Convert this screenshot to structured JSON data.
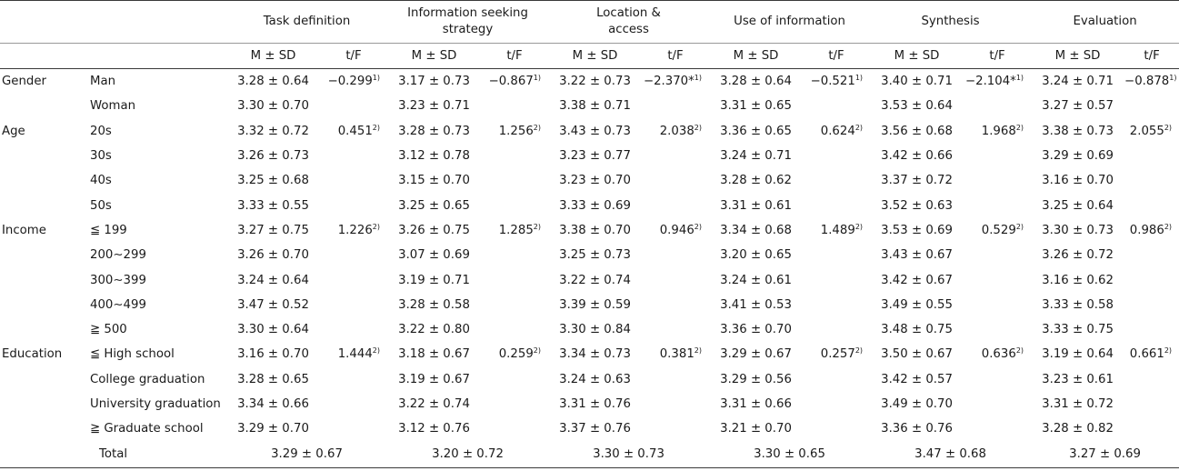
{
  "columns": [
    {
      "label": "Task definition"
    },
    {
      "label": "Information seeking strategy"
    },
    {
      "label": "Location & access"
    },
    {
      "label": "Use of information"
    },
    {
      "label": "Synthesis"
    },
    {
      "label": "Evaluation"
    }
  ],
  "sub_headers": {
    "ms": "M ± SD",
    "tf": "t/F"
  },
  "rows": [
    {
      "group": "Gender",
      "sub": "Man",
      "cells": [
        [
          "3.28 ± 0.64",
          "−0.299",
          "1)"
        ],
        [
          "3.17 ± 0.73",
          "−0.867",
          "1)"
        ],
        [
          "3.22 ± 0.73",
          "−2.370*",
          "1)"
        ],
        [
          "3.28 ± 0.64",
          "−0.521",
          "1)"
        ],
        [
          "3.40 ± 0.71",
          "−2.104*",
          "1)"
        ],
        [
          "3.24 ± 0.71",
          "−0.878",
          "1)"
        ]
      ]
    },
    {
      "group": "",
      "sub": "Woman",
      "cells": [
        [
          "3.30 ± 0.70",
          "",
          ""
        ],
        [
          "3.23 ± 0.71",
          "",
          ""
        ],
        [
          "3.38 ± 0.71",
          "",
          ""
        ],
        [
          "3.31 ± 0.65",
          "",
          ""
        ],
        [
          "3.53 ± 0.64",
          "",
          ""
        ],
        [
          "3.27 ± 0.57",
          "",
          ""
        ]
      ]
    },
    {
      "group": "Age",
      "sub": "20s",
      "cells": [
        [
          "3.32 ± 0.72",
          "0.451",
          "2)"
        ],
        [
          "3.28 ± 0.73",
          "1.256",
          "2)"
        ],
        [
          "3.43 ± 0.73",
          "2.038",
          "2)"
        ],
        [
          "3.36 ± 0.65",
          "0.624",
          "2)"
        ],
        [
          "3.56 ± 0.68",
          "1.968",
          "2)"
        ],
        [
          "3.38 ± 0.73",
          "2.055",
          "2)"
        ]
      ]
    },
    {
      "group": "",
      "sub": "30s",
      "cells": [
        [
          "3.26 ± 0.73",
          "",
          ""
        ],
        [
          "3.12 ± 0.78",
          "",
          ""
        ],
        [
          "3.23 ± 0.77",
          "",
          ""
        ],
        [
          "3.24 ± 0.71",
          "",
          ""
        ],
        [
          "3.42 ± 0.66",
          "",
          ""
        ],
        [
          "3.29 ± 0.69",
          "",
          ""
        ]
      ]
    },
    {
      "group": "",
      "sub": "40s",
      "cells": [
        [
          "3.25 ± 0.68",
          "",
          ""
        ],
        [
          "3.15 ± 0.70",
          "",
          ""
        ],
        [
          "3.23 ± 0.70",
          "",
          ""
        ],
        [
          "3.28 ± 0.62",
          "",
          ""
        ],
        [
          "3.37 ± 0.72",
          "",
          ""
        ],
        [
          "3.16 ± 0.70",
          "",
          ""
        ]
      ]
    },
    {
      "group": "",
      "sub": "50s",
      "cells": [
        [
          "3.33 ± 0.55",
          "",
          ""
        ],
        [
          "3.25 ± 0.65",
          "",
          ""
        ],
        [
          "3.33 ± 0.69",
          "",
          ""
        ],
        [
          "3.31 ± 0.61",
          "",
          ""
        ],
        [
          "3.52 ± 0.63",
          "",
          ""
        ],
        [
          "3.25 ± 0.64",
          "",
          ""
        ]
      ]
    },
    {
      "group": "Income",
      "sub": "≦ 199",
      "cells": [
        [
          "3.27 ± 0.75",
          "1.226",
          "2)"
        ],
        [
          "3.26 ± 0.75",
          "1.285",
          "2)"
        ],
        [
          "3.38 ± 0.70",
          "0.946",
          "2)"
        ],
        [
          "3.34 ± 0.68",
          "1.489",
          "2)"
        ],
        [
          "3.53 ± 0.69",
          "0.529",
          "2)"
        ],
        [
          "3.30 ± 0.73",
          "0.986",
          "2)"
        ]
      ]
    },
    {
      "group": "",
      "sub": "200∼299",
      "cells": [
        [
          "3.26 ± 0.70",
          "",
          ""
        ],
        [
          "3.07 ± 0.69",
          "",
          ""
        ],
        [
          "3.25 ± 0.73",
          "",
          ""
        ],
        [
          "3.20 ± 0.65",
          "",
          ""
        ],
        [
          "3.43 ± 0.67",
          "",
          ""
        ],
        [
          "3.26 ± 0.72",
          "",
          ""
        ]
      ]
    },
    {
      "group": "",
      "sub": "300∼399",
      "cells": [
        [
          "3.24 ± 0.64",
          "",
          ""
        ],
        [
          "3.19 ± 0.71",
          "",
          ""
        ],
        [
          "3.22 ± 0.74",
          "",
          ""
        ],
        [
          "3.24 ± 0.61",
          "",
          ""
        ],
        [
          "3.42 ± 0.67",
          "",
          ""
        ],
        [
          "3.16 ± 0.62",
          "",
          ""
        ]
      ]
    },
    {
      "group": "",
      "sub": "400∼499",
      "cells": [
        [
          "3.47 ± 0.52",
          "",
          ""
        ],
        [
          "3.28 ± 0.58",
          "",
          ""
        ],
        [
          "3.39 ± 0.59",
          "",
          ""
        ],
        [
          "3.41 ± 0.53",
          "",
          ""
        ],
        [
          "3.49 ± 0.55",
          "",
          ""
        ],
        [
          "3.33 ± 0.58",
          "",
          ""
        ]
      ]
    },
    {
      "group": "",
      "sub": "≧ 500",
      "cells": [
        [
          "3.30 ± 0.64",
          "",
          ""
        ],
        [
          "3.22 ± 0.80",
          "",
          ""
        ],
        [
          "3.30 ± 0.84",
          "",
          ""
        ],
        [
          "3.36 ± 0.70",
          "",
          ""
        ],
        [
          "3.48 ± 0.75",
          "",
          ""
        ],
        [
          "3.33 ± 0.75",
          "",
          ""
        ]
      ]
    },
    {
      "group": "Education",
      "sub": "≦ High school",
      "cells": [
        [
          "3.16 ± 0.70",
          "1.444",
          "2)"
        ],
        [
          "3.18 ± 0.67",
          "0.259",
          "2)"
        ],
        [
          "3.34 ± 0.73",
          "0.381",
          "2)"
        ],
        [
          "3.29 ± 0.67",
          "0.257",
          "2)"
        ],
        [
          "3.50 ± 0.67",
          "0.636",
          "2)"
        ],
        [
          "3.19 ± 0.64",
          "0.661",
          "2)"
        ]
      ]
    },
    {
      "group": "",
      "sub": "College graduation",
      "cells": [
        [
          "3.28 ± 0.65",
          "",
          ""
        ],
        [
          "3.19 ± 0.67",
          "",
          ""
        ],
        [
          "3.24 ± 0.63",
          "",
          ""
        ],
        [
          "3.29 ± 0.56",
          "",
          ""
        ],
        [
          "3.42 ± 0.57",
          "",
          ""
        ],
        [
          "3.23 ± 0.61",
          "",
          ""
        ]
      ]
    },
    {
      "group": "",
      "sub": "University graduation",
      "cells": [
        [
          "3.34 ± 0.66",
          "",
          ""
        ],
        [
          "3.22 ± 0.74",
          "",
          ""
        ],
        [
          "3.31 ± 0.76",
          "",
          ""
        ],
        [
          "3.31 ± 0.66",
          "",
          ""
        ],
        [
          "3.49 ± 0.70",
          "",
          ""
        ],
        [
          "3.31 ± 0.72",
          "",
          ""
        ]
      ]
    },
    {
      "group": "",
      "sub": "≧ Graduate school",
      "cells": [
        [
          "3.29 ± 0.70",
          "",
          ""
        ],
        [
          "3.12 ± 0.76",
          "",
          ""
        ],
        [
          "3.37 ± 0.76",
          "",
          ""
        ],
        [
          "3.21 ± 0.70",
          "",
          ""
        ],
        [
          "3.36 ± 0.76",
          "",
          ""
        ],
        [
          "3.28 ± 0.82",
          "",
          ""
        ]
      ]
    }
  ],
  "total": {
    "label": "Total",
    "values": [
      "3.29 ± 0.67",
      "3.20 ± 0.72",
      "3.30 ± 0.73",
      "3.30 ± 0.65",
      "3.47 ± 0.68",
      "3.27 ± 0.69"
    ]
  }
}
